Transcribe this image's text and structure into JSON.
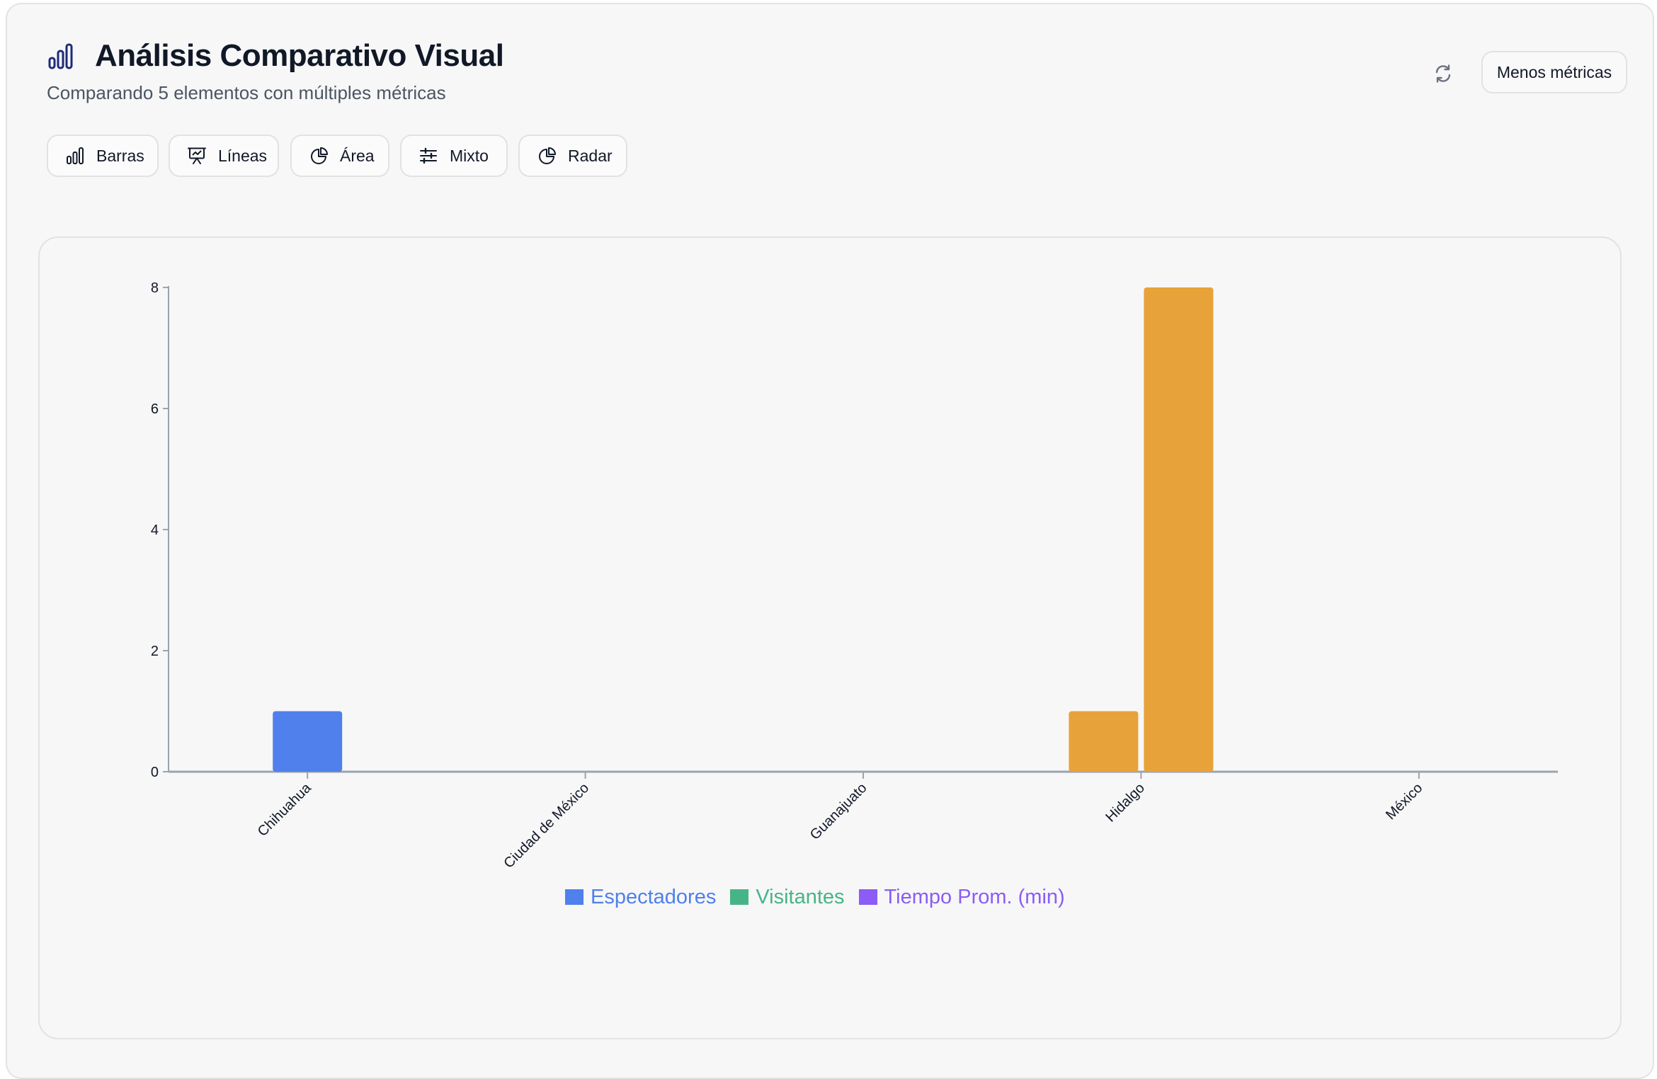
{
  "header": {
    "title": "Análisis Comparativo Visual",
    "subtitle": "Comparando 5 elementos con múltiples métricas",
    "title_icon": "bar-chart-icon",
    "refresh_icon": "refresh-icon",
    "metrics_toggle_label": "Menos métricas"
  },
  "tabs": [
    {
      "label": "Barras",
      "icon": "bar-chart-icon"
    },
    {
      "label": "Líneas",
      "icon": "presentation-chart-icon"
    },
    {
      "label": "Área",
      "icon": "pie-chart-icon"
    },
    {
      "label": "Mixto",
      "icon": "sliders-icon"
    },
    {
      "label": "Radar",
      "icon": "pie-chart-icon"
    }
  ],
  "colors": {
    "espectadores": "#4f80ec",
    "visitantes": "#47b487",
    "tiempo": "#8b5cf6",
    "highlight": "#e8a23a",
    "axis": "#9ca3af",
    "title_icon": "#1e2a78"
  },
  "chart_data": {
    "type": "bar",
    "categories": [
      "Chihuahua",
      "Ciudad de México",
      "Guanajuato",
      "Hidalgo",
      "México"
    ],
    "series": [
      {
        "name": "Espectadores",
        "values": [
          1,
          0,
          0,
          1,
          0
        ]
      },
      {
        "name": "Visitantes",
        "values": [
          0,
          0,
          0,
          8,
          0
        ]
      },
      {
        "name": "Tiempo Prom. (min)",
        "values": [
          0,
          0,
          0,
          0,
          0
        ]
      }
    ],
    "highlighted_category": "Hidalgo",
    "ylim": [
      0,
      8
    ],
    "yticks": [
      0,
      2,
      4,
      6,
      8
    ],
    "grid": false,
    "legend_position": "bottom"
  }
}
